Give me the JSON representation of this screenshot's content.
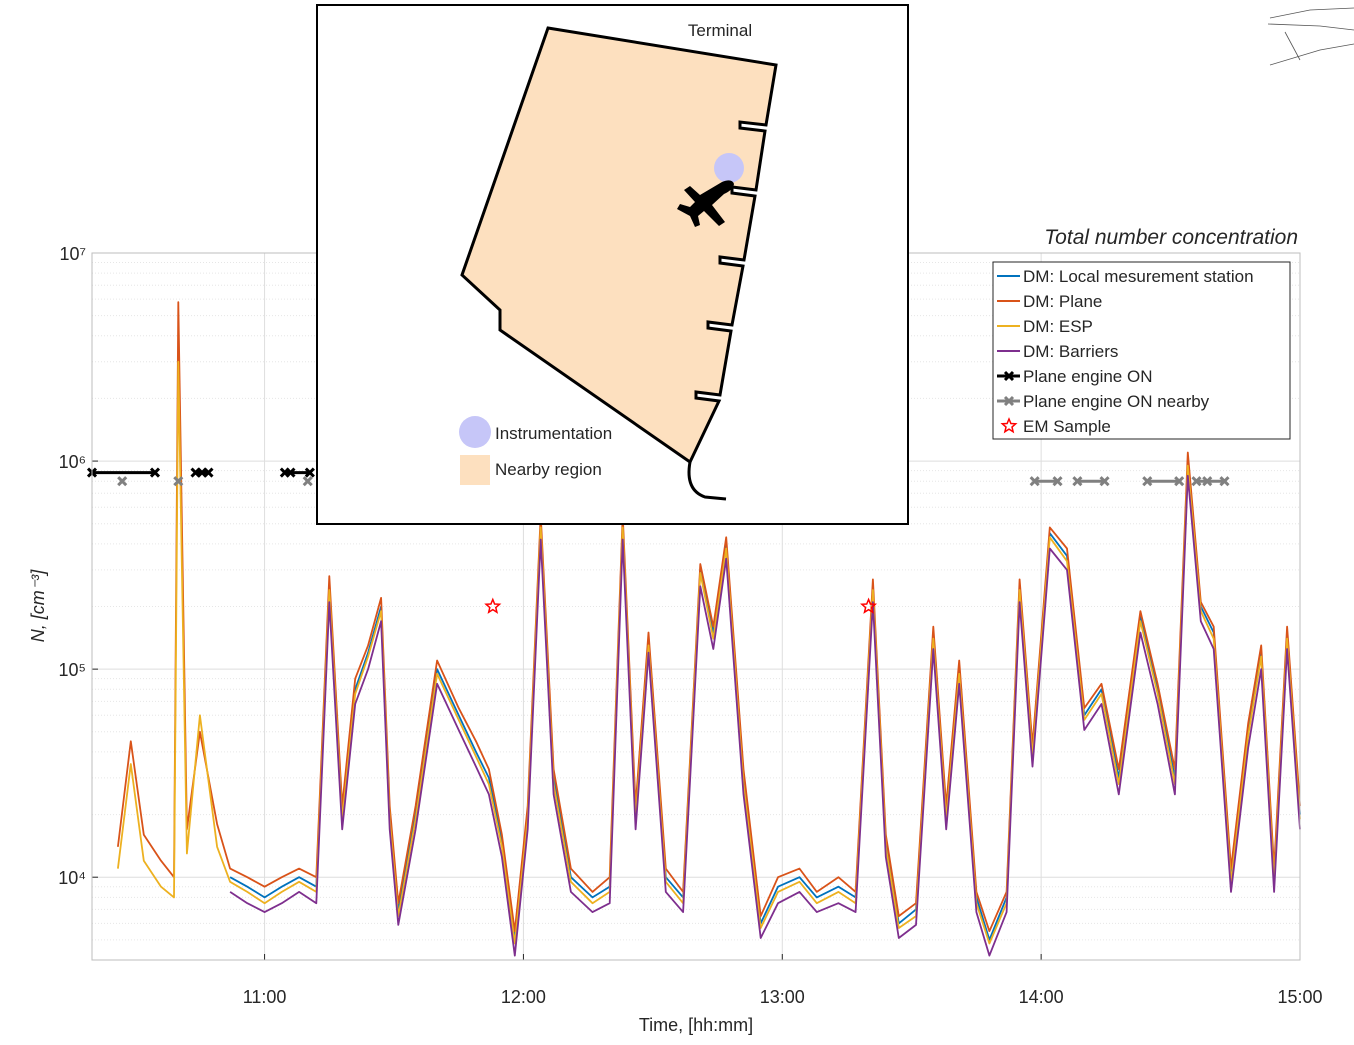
{
  "chart_data": {
    "type": "line",
    "title": "Total number concentration",
    "xlabel": "Time, [hh:mm]",
    "ylabel": "N, [cm⁻³]",
    "log_y": true,
    "grid": true,
    "minor_grid": true,
    "legend": "upper right",
    "xlim": [
      620,
      900
    ],
    "xticks": [
      {
        "value": 660,
        "label": "11:00"
      },
      {
        "value": 720,
        "label": "12:00"
      },
      {
        "value": 780,
        "label": "13:00"
      },
      {
        "value": 840,
        "label": "14:00"
      },
      {
        "value": 900,
        "label": "15:00"
      }
    ],
    "ylim": [
      4000,
      10000000
    ],
    "yticks": [
      {
        "value": 10000,
        "label": "10⁴"
      },
      {
        "value": 100000,
        "label": "10⁵"
      },
      {
        "value": 1000000,
        "label": "10⁶"
      },
      {
        "value": 10000000,
        "label": "10⁷"
      }
    ],
    "x": [
      626,
      629,
      632,
      636,
      639,
      640,
      642,
      645,
      649,
      652,
      656,
      660,
      664,
      668,
      672,
      675,
      678,
      681,
      684,
      687,
      689,
      691,
      695,
      700,
      705,
      709,
      712,
      715,
      718,
      721,
      724,
      727,
      731,
      736,
      740,
      743,
      746,
      749,
      753,
      757,
      761,
      764,
      767,
      771,
      775,
      779,
      784,
      788,
      793,
      797,
      801,
      804,
      807,
      811,
      815,
      818,
      821,
      825,
      828,
      832,
      835,
      838,
      842,
      846,
      850,
      854,
      858,
      863,
      867,
      871,
      874,
      877,
      880,
      884,
      888,
      891,
      894,
      897,
      900
    ],
    "series": [
      {
        "name": "DM: Local mesurement station",
        "color": "#0072bd",
        "values": [
          null,
          null,
          null,
          null,
          null,
          null,
          null,
          null,
          null,
          10000,
          9000,
          8000,
          9000,
          10000,
          9000,
          250000,
          20000,
          80000,
          120000,
          200000,
          20000,
          7000,
          20000,
          100000,
          60000,
          40000,
          30000,
          15000,
          5000,
          20000,
          500000,
          30000,
          10000,
          8000,
          9000,
          500000,
          20000,
          140000,
          10000,
          8000,
          300000,
          150000,
          400000,
          30000,
          6000,
          9000,
          10000,
          8000,
          9000,
          8000,
          250000,
          15000,
          6000,
          7000,
          150000,
          20000,
          100000,
          8000,
          5000,
          8000,
          250000,
          40000,
          450000,
          350000,
          60000,
          80000,
          30000,
          180000,
          80000,
          30000,
          1000000,
          200000,
          150000,
          10000,
          50000,
          120000,
          10000,
          150000,
          20000
        ]
      },
      {
        "name": "DM: Plane",
        "color": "#d95319",
        "values": [
          14000,
          45000,
          16000,
          12000,
          10000,
          5800000,
          17000,
          50000,
          18000,
          11000,
          10000,
          9000,
          10000,
          11000,
          10000,
          280000,
          22000,
          90000,
          130000,
          220000,
          22000,
          7500,
          22000,
          110000,
          65000,
          45000,
          33000,
          16000,
          5500,
          22000,
          550000,
          33000,
          11000,
          8500,
          10000,
          550000,
          22000,
          150000,
          11000,
          8500,
          320000,
          160000,
          430000,
          33000,
          6500,
          10000,
          11000,
          8500,
          10000,
          8500,
          270000,
          16000,
          6500,
          7500,
          160000,
          22000,
          110000,
          8500,
          5500,
          8500,
          270000,
          43000,
          480000,
          380000,
          65000,
          85000,
          33000,
          190000,
          85000,
          33000,
          1100000,
          210000,
          160000,
          11000,
          55000,
          130000,
          11000,
          160000,
          22000
        ]
      },
      {
        "name": "DM: ESP",
        "color": "#edb120",
        "values": [
          11000,
          35000,
          12000,
          9000,
          8000,
          3000000,
          13000,
          60000,
          14000,
          9500,
          8500,
          7500,
          8500,
          9500,
          8500,
          240000,
          19000,
          76000,
          115000,
          190000,
          19000,
          6500,
          19000,
          95000,
          57000,
          38000,
          28000,
          14000,
          4800,
          19000,
          480000,
          28000,
          9500,
          7500,
          8500,
          480000,
          19000,
          130000,
          9500,
          7500,
          290000,
          140000,
          380000,
          28000,
          5700,
          8500,
          9500,
          7500,
          8500,
          7500,
          240000,
          14000,
          5700,
          6500,
          140000,
          19000,
          95000,
          7500,
          4800,
          7500,
          240000,
          38000,
          430000,
          330000,
          57000,
          76000,
          28000,
          170000,
          76000,
          28000,
          950000,
          190000,
          140000,
          9500,
          48000,
          115000,
          9500,
          140000,
          19000
        ]
      },
      {
        "name": "DM: Barriers",
        "color": "#7e2f8e",
        "values": [
          null,
          null,
          null,
          null,
          null,
          null,
          null,
          null,
          null,
          8500,
          7500,
          6800,
          7500,
          8500,
          7500,
          210000,
          17000,
          68000,
          100000,
          170000,
          17000,
          5900,
          17000,
          85000,
          51000,
          34000,
          25000,
          12500,
          4200,
          17000,
          420000,
          25000,
          8500,
          6800,
          7500,
          420000,
          17000,
          120000,
          8500,
          6800,
          250000,
          125000,
          340000,
          25000,
          5100,
          7500,
          8500,
          6800,
          7500,
          6800,
          210000,
          12500,
          5100,
          5900,
          125000,
          17000,
          85000,
          6800,
          4200,
          6800,
          210000,
          34000,
          380000,
          300000,
          51000,
          68000,
          25000,
          150000,
          68000,
          25000,
          850000,
          170000,
          125000,
          8500,
          42000,
          100000,
          8500,
          125000,
          17000
        ]
      }
    ],
    "events": [
      {
        "name": "Plane engine ON",
        "color": "#000000",
        "x": [
          620,
          634.6,
          null,
          644,
          645.5,
          647,
          null,
          664.7,
          666,
          670.5
        ],
        "values": [
          880000,
          880000,
          null,
          880000,
          880000,
          880000,
          null,
          880000,
          880000,
          880000
        ]
      },
      {
        "name": "Plane engine ON nearby",
        "color": "#808080",
        "x": [
          627,
          null,
          640,
          null,
          670,
          null,
          838.5,
          843.8,
          null,
          848.4,
          854.7,
          null,
          864.6,
          872,
          null,
          876,
          878.5,
          882.5
        ],
        "values": [
          800000,
          null,
          800000,
          null,
          800000,
          null,
          800000,
          800000,
          null,
          800000,
          800000,
          null,
          800000,
          800000,
          null,
          800000,
          800000,
          800000
        ]
      }
    ],
    "samples": {
      "name": "EM Sample",
      "color": "#ff0000",
      "x": [
        712.9,
        800
      ],
      "values": [
        200000,
        200000
      ]
    }
  },
  "inset": {
    "title": "Terminal",
    "legend": [
      "Instrumentation",
      "Nearby region"
    ]
  }
}
